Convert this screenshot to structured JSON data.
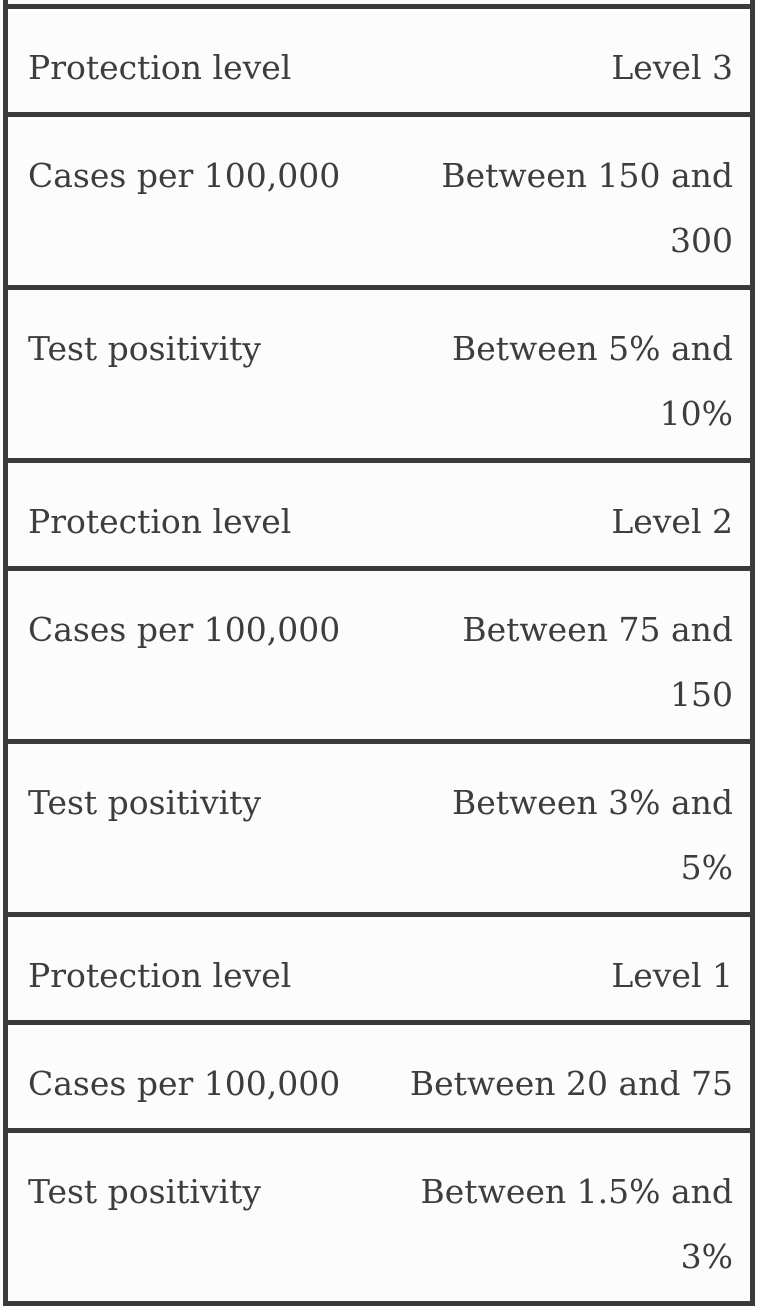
{
  "colors": {
    "border": "#3a3a3a",
    "text": "#3d3d3d",
    "background": "#fcfcfc"
  },
  "table": {
    "rows": [
      {
        "label": "Protection level",
        "value": "Level 3"
      },
      {
        "label": "Cases per 100,000",
        "value": "Between 150 and\n300"
      },
      {
        "label": "Test positivity",
        "value": "Between 5% and\n10%"
      },
      {
        "label": "Protection level",
        "value": "Level 2"
      },
      {
        "label": "Cases per 100,000",
        "value": "Between 75 and\n150"
      },
      {
        "label": "Test positivity",
        "value": "Between 3% and\n5%"
      },
      {
        "label": "Protection level",
        "value": "Level 1"
      },
      {
        "label": "Cases per 100,000",
        "value": "Between 20 and 75"
      },
      {
        "label": "Test positivity",
        "value": "Between 1.5% and\n3%"
      }
    ]
  }
}
